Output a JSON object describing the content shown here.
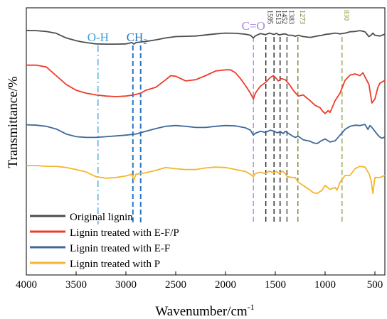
{
  "chart_data": {
    "type": "line",
    "xlabel": "Wavenumber/cm",
    "xlabel_sup": "-1",
    "ylabel": "Transmittance/%",
    "xlim": [
      4000,
      400
    ],
    "x_reversed": true,
    "xticks": [
      4000,
      3500,
      3000,
      2500,
      2000,
      1500,
      1000,
      500
    ],
    "y_ticks_shown": false,
    "legend_position": "bottom-left",
    "series": [
      {
        "name": "Original lignin",
        "color": "#4d4d4d",
        "x": [
          4000,
          3900,
          3800,
          3700,
          3600,
          3500,
          3450,
          3400,
          3300,
          3200,
          3100,
          3000,
          2940,
          2920,
          2900,
          2850,
          2800,
          2700,
          2600,
          2500,
          2400,
          2300,
          2200,
          2100,
          2000,
          1900,
          1800,
          1750,
          1720,
          1700,
          1650,
          1600,
          1560,
          1513,
          1490,
          1460,
          1430,
          1400,
          1370,
          1330,
          1300,
          1270,
          1220,
          1150,
          1120,
          1080,
          1030,
          1000,
          950,
          900,
          880,
          850,
          800,
          750,
          700,
          650,
          600,
          560,
          540,
          520,
          500,
          450,
          400
        ],
        "y": [
          0.02,
          0.03,
          0.06,
          0.13,
          0.3,
          0.4,
          0.44,
          0.47,
          0.52,
          0.53,
          0.53,
          0.52,
          0.47,
          0.53,
          0.47,
          0.45,
          0.43,
          0.37,
          0.3,
          0.25,
          0.24,
          0.23,
          0.19,
          0.15,
          0.12,
          0.13,
          0.16,
          0.2,
          0.3,
          0.22,
          0.14,
          0.18,
          0.12,
          0.17,
          0.13,
          0.19,
          0.16,
          0.15,
          0.2,
          0.2,
          0.24,
          0.2,
          0.25,
          0.28,
          0.26,
          0.23,
          0.2,
          0.17,
          0.15,
          0.12,
          0.13,
          0.15,
          0.12,
          0.07,
          0.06,
          0.03,
          0.07,
          0.25,
          0.2,
          0.12,
          0.2,
          0.23,
          0.16
        ]
      },
      {
        "name": "Lignin treated with E-F/P",
        "color": "#ee3b2a",
        "x": [
          4000,
          3900,
          3800,
          3700,
          3600,
          3500,
          3400,
          3300,
          3200,
          3100,
          3000,
          2920,
          2850,
          2800,
          2700,
          2600,
          2550,
          2500,
          2450,
          2400,
          2300,
          2200,
          2100,
          2000,
          1950,
          1900,
          1850,
          1800,
          1750,
          1720,
          1700,
          1650,
          1600,
          1550,
          1520,
          1500,
          1470,
          1440,
          1400,
          1360,
          1320,
          1270,
          1220,
          1150,
          1100,
          1050,
          1030,
          1000,
          970,
          950,
          900,
          850,
          800,
          750,
          700,
          650,
          620,
          600,
          560,
          530,
          500,
          470,
          450,
          420,
          400
        ],
        "y": [
          0.07,
          0.07,
          0.1,
          0.25,
          0.4,
          0.5,
          0.55,
          0.58,
          0.6,
          0.61,
          0.6,
          0.58,
          0.55,
          0.5,
          0.45,
          0.32,
          0.25,
          0.26,
          0.3,
          0.34,
          0.32,
          0.25,
          0.17,
          0.15,
          0.15,
          0.2,
          0.3,
          0.42,
          0.55,
          0.65,
          0.55,
          0.43,
          0.37,
          0.28,
          0.25,
          0.28,
          0.34,
          0.3,
          0.32,
          0.4,
          0.5,
          0.6,
          0.58,
          0.68,
          0.76,
          0.8,
          0.85,
          0.9,
          0.85,
          0.88,
          0.68,
          0.55,
          0.33,
          0.24,
          0.22,
          0.25,
          0.2,
          0.27,
          0.4,
          0.72,
          0.65,
          0.45,
          0.38,
          0.35,
          0.33
        ]
      },
      {
        "name": "Lignin treated with E-F",
        "color": "#3d6899",
        "x": [
          4000,
          3900,
          3800,
          3700,
          3600,
          3500,
          3400,
          3300,
          3200,
          3100,
          3000,
          2900,
          2800,
          2700,
          2600,
          2500,
          2400,
          2300,
          2200,
          2100,
          2000,
          1900,
          1800,
          1750,
          1720,
          1700,
          1650,
          1600,
          1550,
          1510,
          1480,
          1450,
          1420,
          1400,
          1370,
          1330,
          1300,
          1270,
          1220,
          1150,
          1120,
          1080,
          1040,
          1000,
          950,
          900,
          850,
          800,
          750,
          700,
          650,
          600,
          570,
          550,
          530,
          500,
          470,
          450,
          430,
          400
        ],
        "y": [
          0.03,
          0.04,
          0.07,
          0.14,
          0.27,
          0.34,
          0.36,
          0.36,
          0.34,
          0.32,
          0.3,
          0.27,
          0.2,
          0.13,
          0.07,
          0.05,
          0.07,
          0.1,
          0.1,
          0.07,
          0.05,
          0.06,
          0.11,
          0.17,
          0.3,
          0.25,
          0.2,
          0.23,
          0.17,
          0.2,
          0.24,
          0.21,
          0.26,
          0.2,
          0.25,
          0.32,
          0.36,
          0.33,
          0.42,
          0.46,
          0.5,
          0.52,
          0.45,
          0.4,
          0.48,
          0.45,
          0.3,
          0.15,
          0.07,
          0.04,
          0.05,
          0.02,
          0.15,
          0.05,
          0.1,
          0.2,
          0.3,
          0.35,
          0.38,
          0.35
        ]
      },
      {
        "name": "Lignin treated with P",
        "color": "#f5b52e",
        "x": [
          4000,
          3900,
          3800,
          3700,
          3600,
          3500,
          3400,
          3300,
          3200,
          3100,
          3000,
          2940,
          2920,
          2900,
          2850,
          2800,
          2700,
          2600,
          2500,
          2400,
          2300,
          2200,
          2100,
          2000,
          1900,
          1800,
          1750,
          1720,
          1700,
          1650,
          1600,
          1560,
          1513,
          1490,
          1460,
          1430,
          1400,
          1380,
          1330,
          1300,
          1270,
          1220,
          1150,
          1120,
          1080,
          1030,
          1000,
          950,
          900,
          880,
          850,
          800,
          750,
          700,
          650,
          600,
          560,
          540,
          520,
          500,
          450,
          400
        ],
        "y": [
          0.0,
          0.0,
          0.02,
          0.02,
          0.05,
          0.1,
          0.16,
          0.28,
          0.32,
          0.3,
          0.26,
          0.22,
          0.36,
          0.22,
          0.2,
          0.18,
          0.12,
          0.05,
          0.08,
          0.1,
          0.1,
          0.06,
          0.04,
          0.05,
          0.1,
          0.15,
          0.22,
          0.28,
          0.2,
          0.17,
          0.2,
          0.14,
          0.18,
          0.15,
          0.2,
          0.14,
          0.2,
          0.28,
          0.3,
          0.3,
          0.42,
          0.5,
          0.62,
          0.68,
          0.7,
          0.62,
          0.5,
          0.6,
          0.55,
          0.62,
          0.42,
          0.25,
          0.25,
          0.08,
          0.02,
          0.04,
          0.2,
          0.35,
          0.7,
          0.3,
          0.3,
          0.25
        ]
      }
    ],
    "annotations": [
      {
        "label": "O-H",
        "color": "#3a9fd8",
        "x": [
          3280
        ],
        "style": "dashdot"
      },
      {
        "label": "CH",
        "label_sub": "2",
        "color": "#2478c5",
        "x": [
          2930,
          2852
        ],
        "style": "dashed"
      },
      {
        "label": "C=O",
        "color": "#a58ad6",
        "x": [
          1720
        ],
        "style": "dashed"
      },
      {
        "label": "1595",
        "color": "#111111",
        "x": [
          1595
        ],
        "style": "dashed"
      },
      {
        "label": "1513",
        "color": "#111111",
        "x": [
          1513
        ],
        "style": "dashed"
      },
      {
        "label": "1452",
        "color": "#111111",
        "x": [
          1452
        ],
        "style": "dashed"
      },
      {
        "label": "1383",
        "color": "#333333",
        "x": [
          1383
        ],
        "style": "dashed"
      },
      {
        "label": "1273",
        "color": "#6b7a2a",
        "x": [
          1273
        ],
        "style": "dashed"
      },
      {
        "label": "830",
        "color": "#8a9a3a",
        "x": [
          830
        ],
        "style": "dashed"
      }
    ]
  }
}
